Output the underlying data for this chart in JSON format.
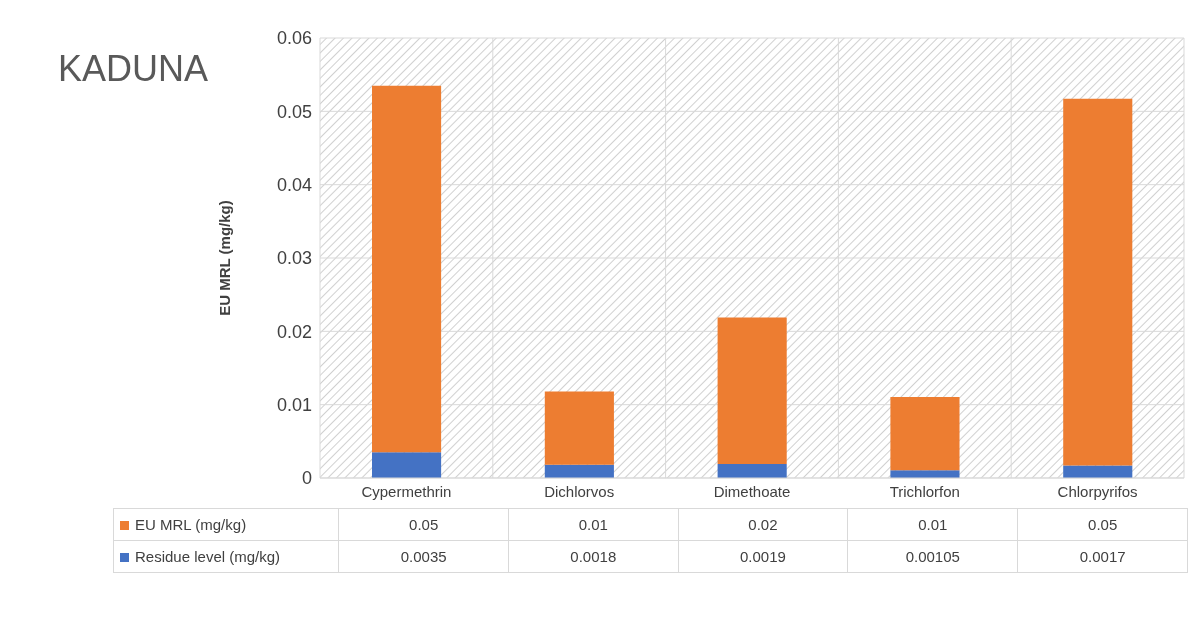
{
  "chart_data": {
    "type": "bar",
    "title": "KADUNA",
    "ylabel": "EU MRL (mg/kg)",
    "categories": [
      "Cypermethrin",
      "Dichlorvos",
      "Dimethoate",
      "Trichlorfon",
      "Chlorpyrifos"
    ],
    "series": [
      {
        "name": "Residue level (mg/kg)",
        "color": "#4472c4",
        "values": [
          0.0035,
          0.0018,
          0.0019,
          0.00105,
          0.0017
        ]
      },
      {
        "name": "EU MRL (mg/kg)",
        "color": "#ed7d31",
        "values": [
          0.05,
          0.01,
          0.02,
          0.01,
          0.05
        ]
      }
    ],
    "stacked": true,
    "ylim": [
      0,
      0.06
    ],
    "yticks": [
      0,
      0.01,
      0.02,
      0.03,
      0.04,
      0.05,
      0.06
    ],
    "grid": true,
    "legend": "bottom",
    "data_labels": true
  }
}
